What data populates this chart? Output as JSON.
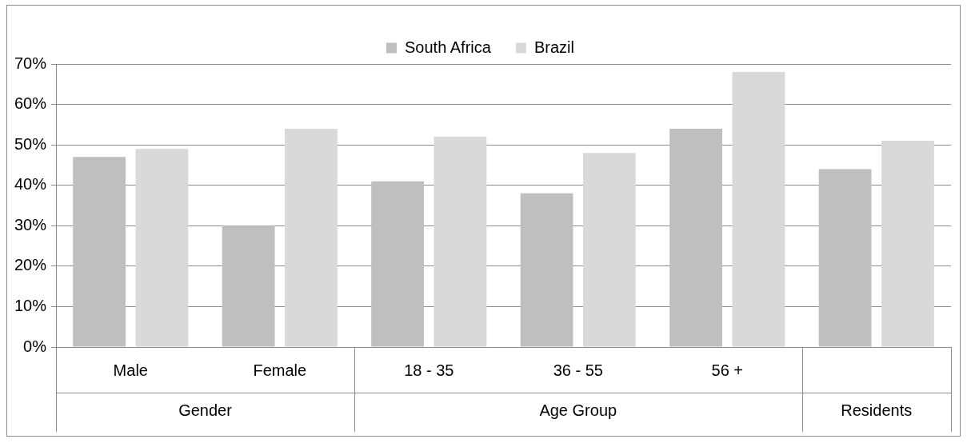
{
  "chart_data": {
    "type": "bar",
    "categories": [
      "Male",
      "Female",
      "18 - 35",
      "36 - 55",
      "56 +",
      null
    ],
    "series": [
      {
        "name": "South Africa",
        "color": "#bfbfbf",
        "values": [
          47,
          30,
          41,
          38,
          54,
          44
        ]
      },
      {
        "name": "Brazil",
        "color": "#d9d9d9",
        "values": [
          49,
          54,
          52,
          48,
          68,
          51
        ]
      }
    ],
    "ylim": [
      0,
      70
    ],
    "yticks": [
      {
        "value": 0,
        "label": "0%"
      },
      {
        "value": 10,
        "label": "10%"
      },
      {
        "value": 20,
        "label": "20%"
      },
      {
        "value": 30,
        "label": "30%"
      },
      {
        "value": 40,
        "label": "40%"
      },
      {
        "value": 50,
        "label": "50%"
      },
      {
        "value": 60,
        "label": "60%"
      },
      {
        "value": 70,
        "label": "70%"
      }
    ],
    "annotations": [
      "Gender",
      "Age Group",
      "Residents"
    ],
    "grid": "y",
    "legend": "top"
  }
}
